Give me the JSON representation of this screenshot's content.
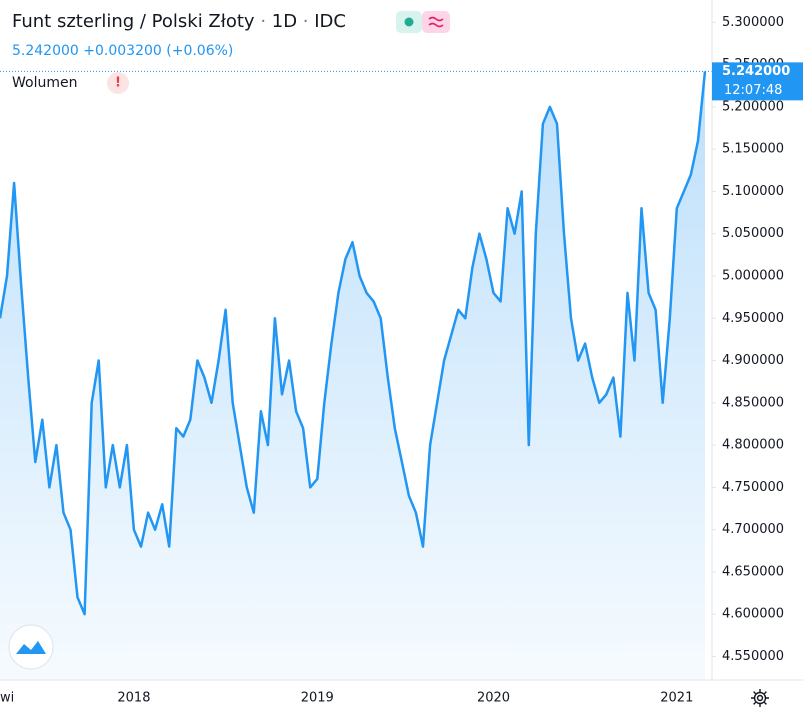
{
  "chart_data": {
    "type": "area",
    "title": "Funt szterling / Polski Złoty",
    "interval": "1D",
    "source": "IDC",
    "last_label": "5.242000",
    "change_label": "+0.003200 (+0.06%)",
    "indicator": "Wolumen",
    "warning": "!",
    "time": "12:07:48",
    "color": "#2196f3",
    "grid": false,
    "categories": [
      "wi",
      null,
      null,
      null,
      null,
      null,
      null,
      null,
      null,
      null,
      null,
      null,
      null,
      null,
      null,
      null,
      null,
      null,
      null,
      "2018",
      null,
      null,
      null,
      null,
      null,
      null,
      null,
      null,
      null,
      null,
      null,
      null,
      null,
      null,
      null,
      null,
      null,
      null,
      null,
      null,
      null,
      null,
      null,
      null,
      null,
      "2019",
      null,
      null,
      null,
      null,
      null,
      null,
      null,
      null,
      null,
      null,
      null,
      null,
      null,
      null,
      null,
      null,
      null,
      null,
      null,
      null,
      null,
      null,
      null,
      null,
      "2020",
      null,
      null,
      null,
      null,
      null,
      null,
      null,
      null,
      null,
      null,
      null,
      null,
      null,
      null,
      null,
      null,
      null,
      null,
      null,
      null,
      null,
      null,
      null,
      null,
      null,
      "2021",
      null,
      null,
      null,
      null
    ],
    "values": [
      4.95,
      5.0,
      5.11,
      4.99,
      4.88,
      4.78,
      4.83,
      4.75,
      4.8,
      4.72,
      4.7,
      4.62,
      4.6,
      4.85,
      4.9,
      4.75,
      4.8,
      4.75,
      4.8,
      4.7,
      4.68,
      4.72,
      4.7,
      4.73,
      4.68,
      4.82,
      4.81,
      4.83,
      4.9,
      4.88,
      4.85,
      4.9,
      4.96,
      4.85,
      4.8,
      4.75,
      4.72,
      4.84,
      4.8,
      4.95,
      4.86,
      4.9,
      4.84,
      4.82,
      4.75,
      4.76,
      4.85,
      4.92,
      4.98,
      5.02,
      5.04,
      5.0,
      4.98,
      4.97,
      4.95,
      4.88,
      4.82,
      4.78,
      4.74,
      4.72,
      4.68,
      4.8,
      4.85,
      4.9,
      4.93,
      4.96,
      4.95,
      5.01,
      5.05,
      5.02,
      4.98,
      4.97,
      5.08,
      5.05,
      5.1,
      4.8,
      5.05,
      5.18,
      5.2,
      5.18,
      5.05,
      4.95,
      4.9,
      4.92,
      4.88,
      4.85,
      4.86,
      4.88,
      4.81,
      4.98,
      4.9,
      5.08,
      4.98,
      4.96,
      4.85,
      4.95,
      5.08,
      5.1,
      5.12,
      5.16,
      5.242
    ],
    "ylim": [
      4.5222,
      5.3264
    ],
    "yticks": [
      {
        "value": 5.3,
        "label": "5.300000"
      },
      {
        "value": 5.25,
        "label": "5.250000"
      },
      {
        "value": 5.2,
        "label": "5.200000"
      },
      {
        "value": 5.15,
        "label": "5.150000"
      },
      {
        "value": 5.1,
        "label": "5.100000"
      },
      {
        "value": 5.05,
        "label": "5.050000"
      },
      {
        "value": 5.0,
        "label": "5.000000"
      },
      {
        "value": 4.95,
        "label": "4.950000"
      },
      {
        "value": 4.9,
        "label": "4.900000"
      },
      {
        "value": 4.85,
        "label": "4.850000"
      },
      {
        "value": 4.8,
        "label": "4.800000"
      },
      {
        "value": 4.75,
        "label": "4.750000"
      },
      {
        "value": 4.7,
        "label": "4.700000"
      },
      {
        "value": 4.65,
        "label": "4.650000"
      },
      {
        "value": 4.6,
        "label": "4.600000"
      },
      {
        "value": 4.55,
        "label": "4.550000"
      }
    ]
  }
}
